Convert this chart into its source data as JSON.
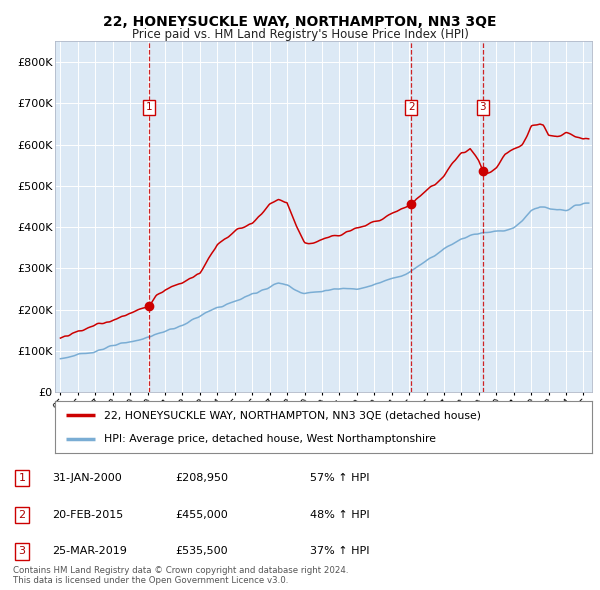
{
  "title": "22, HONEYSUCKLE WAY, NORTHAMPTON, NN3 3QE",
  "subtitle": "Price paid vs. HM Land Registry's House Price Index (HPI)",
  "plot_bg_color": "#dce9f5",
  "red_line_color": "#cc0000",
  "blue_line_color": "#7aadd4",
  "grid_color": "#ffffff",
  "ylim": [
    0,
    850000
  ],
  "yticks": [
    0,
    100000,
    200000,
    300000,
    400000,
    500000,
    600000,
    700000,
    800000
  ],
  "ytick_labels": [
    "£0",
    "£100K",
    "£200K",
    "£300K",
    "£400K",
    "£500K",
    "£600K",
    "£700K",
    "£800K"
  ],
  "sales": [
    {
      "label": "1",
      "date_str": "31-JAN-2000",
      "year": 2000.08,
      "price": 208950,
      "pct": "57%",
      "direction": "↑"
    },
    {
      "label": "2",
      "date_str": "20-FEB-2015",
      "year": 2015.13,
      "price": 455000,
      "pct": "48%",
      "direction": "↑"
    },
    {
      "label": "3",
      "date_str": "25-MAR-2019",
      "year": 2019.23,
      "price": 535500,
      "pct": "37%",
      "direction": "↑"
    }
  ],
  "legend_red": "22, HONEYSUCKLE WAY, NORTHAMPTON, NN3 3QE (detached house)",
  "legend_blue": "HPI: Average price, detached house, West Northamptonshire",
  "footer1": "Contains HM Land Registry data © Crown copyright and database right 2024.",
  "footer2": "This data is licensed under the Open Government Licence v3.0.",
  "xlim_start": 1994.7,
  "xlim_end": 2025.5,
  "hpi_key_years": [
    1995,
    1996,
    1997,
    1998,
    1999,
    2000,
    2001,
    2002,
    2003,
    2004,
    2005,
    2006,
    2007,
    2007.5,
    2008,
    2008.5,
    2009,
    2009.5,
    2010,
    2010.5,
    2011,
    2011.5,
    2012,
    2012.5,
    2013,
    2013.5,
    2014,
    2014.5,
    2015,
    2015.5,
    2016,
    2016.5,
    2017,
    2017.5,
    2018,
    2018.5,
    2019,
    2019.5,
    2020,
    2020.5,
    2021,
    2021.5,
    2022,
    2022.5,
    2023,
    2023.5,
    2024,
    2024.5,
    2025
  ],
  "hpi_key_vals": [
    82000,
    90000,
    100000,
    112000,
    122000,
    133000,
    148000,
    162000,
    185000,
    205000,
    220000,
    238000,
    255000,
    265000,
    260000,
    248000,
    240000,
    242000,
    245000,
    248000,
    250000,
    252000,
    252000,
    255000,
    260000,
    268000,
    275000,
    282000,
    290000,
    305000,
    320000,
    333000,
    348000,
    360000,
    372000,
    380000,
    385000,
    388000,
    390000,
    393000,
    398000,
    415000,
    440000,
    450000,
    445000,
    440000,
    442000,
    450000,
    458000
  ],
  "red_key_years": [
    1995,
    1996,
    1997,
    1998,
    1999,
    2000.08,
    2000.5,
    2001,
    2002,
    2003,
    2004,
    2005,
    2006,
    2007,
    2007.5,
    2008,
    2008.5,
    2009,
    2009.5,
    2010,
    2010.5,
    2011,
    2011.5,
    2012,
    2012.5,
    2013,
    2013.5,
    2014,
    2014.5,
    2015,
    2015.13,
    2015.5,
    2016,
    2016.5,
    2017,
    2017.5,
    2018,
    2018.5,
    2019,
    2019.23,
    2019.5,
    2020,
    2020.5,
    2021,
    2021.5,
    2022,
    2022.5,
    2022.7,
    2023,
    2023.5,
    2024,
    2024.5,
    2025
  ],
  "red_key_vals": [
    130000,
    148000,
    162000,
    175000,
    190000,
    208950,
    232000,
    248000,
    265000,
    290000,
    358000,
    390000,
    408000,
    455000,
    465000,
    460000,
    405000,
    360000,
    362000,
    368000,
    378000,
    385000,
    390000,
    400000,
    405000,
    415000,
    420000,
    432000,
    445000,
    452000,
    455000,
    470000,
    490000,
    505000,
    525000,
    555000,
    580000,
    590000,
    560000,
    535500,
    530000,
    545000,
    575000,
    590000,
    600000,
    645000,
    650000,
    648000,
    625000,
    618000,
    628000,
    622000,
    615000
  ]
}
